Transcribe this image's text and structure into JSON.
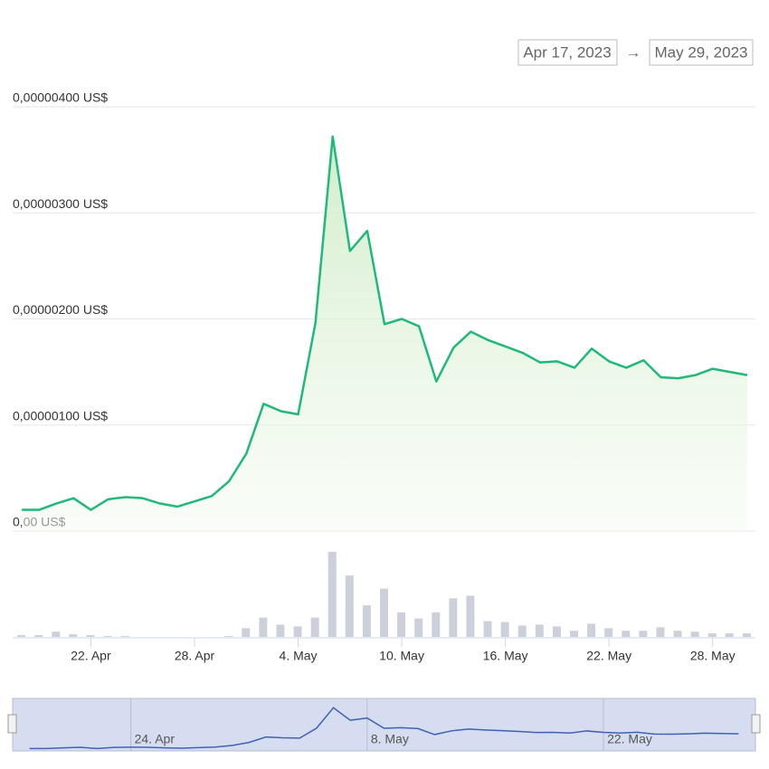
{
  "chart_data": {
    "type": "line",
    "date_range": {
      "start": "Apr 17, 2023",
      "arrow": "→",
      "end": "May 29, 2023"
    },
    "x": [
      "2023-04-18",
      "2023-04-19",
      "2023-04-20",
      "2023-04-21",
      "2023-04-22",
      "2023-04-23",
      "2023-04-24",
      "2023-04-25",
      "2023-04-26",
      "2023-04-27",
      "2023-04-28",
      "2023-04-29",
      "2023-04-30",
      "2023-05-01",
      "2023-05-02",
      "2023-05-03",
      "2023-05-04",
      "2023-05-05",
      "2023-05-06",
      "2023-05-07",
      "2023-05-08",
      "2023-05-09",
      "2023-05-10",
      "2023-05-11",
      "2023-05-12",
      "2023-05-13",
      "2023-05-14",
      "2023-05-15",
      "2023-05-16",
      "2023-05-17",
      "2023-05-18",
      "2023-05-19",
      "2023-05-20",
      "2023-05-21",
      "2023-05-22",
      "2023-05-23",
      "2023-05-24",
      "2023-05-25",
      "2023-05-26",
      "2023-05-27",
      "2023-05-28",
      "2023-05-29",
      "2023-05-30"
    ],
    "series": [
      {
        "color": "#1fb97a",
        "values": [
          2e-07,
          2e-07,
          2.6e-07,
          3.1e-07,
          2e-07,
          3e-07,
          3.2e-07,
          3.1e-07,
          2.6e-07,
          2.3e-07,
          2.8e-07,
          3.3e-07,
          4.7e-07,
          7.3e-07,
          1.2e-06,
          1.13e-06,
          1.1e-06,
          1.96e-06,
          3.72e-06,
          2.64e-06,
          2.83e-06,
          1.95e-06,
          2e-06,
          1.93e-06,
          1.41e-06,
          1.73e-06,
          1.88e-06,
          1.8e-06,
          1.74e-06,
          1.68e-06,
          1.59e-06,
          1.6e-06,
          1.54e-06,
          1.72e-06,
          1.6e-06,
          1.54e-06,
          1.61e-06,
          1.45e-06,
          1.44e-06,
          1.47e-06,
          1.53e-06,
          1.5e-06,
          1.47e-06
        ]
      },
      {
        "type": "bar",
        "axis": "y2",
        "color": "#cdd0db",
        "values": [
          2,
          2,
          6,
          3,
          2,
          1,
          1,
          0,
          0,
          0,
          0,
          0,
          1,
          10,
          22,
          14,
          12,
          22,
          97,
          70,
          36,
          55,
          28,
          21,
          28,
          44,
          47,
          18,
          17,
          13,
          14,
          12,
          7,
          15,
          10,
          7,
          7,
          11,
          7,
          6,
          4,
          4,
          4
        ]
      }
    ],
    "xlim": [
      "2023-04-17",
      "2023-05-31"
    ],
    "xticks": [
      {
        "value": "2023-04-22",
        "label": "22. Apr"
      },
      {
        "value": "2023-04-28",
        "label": "28. Apr"
      },
      {
        "value": "2023-05-04",
        "label": "4. May"
      },
      {
        "value": "2023-05-10",
        "label": "10. May"
      },
      {
        "value": "2023-05-16",
        "label": "16. May"
      },
      {
        "value": "2023-05-22",
        "label": "22. May"
      },
      {
        "value": "2023-05-28",
        "label": "28. May"
      }
    ],
    "ylim": [
      0,
      4e-06
    ],
    "yticks": [
      {
        "value": 0,
        "label": "0,00 US$"
      },
      {
        "value": 1e-06,
        "label": "0,00000100 US$"
      },
      {
        "value": 2e-06,
        "label": "0,00000200 US$"
      },
      {
        "value": 3e-06,
        "label": "0,00000300 US$"
      },
      {
        "value": 4e-06,
        "label": "0,00000400 US$"
      }
    ],
    "y2lim": [
      0,
      100
    ],
    "grid": true,
    "navigator": {
      "xticks": [
        {
          "value": "2023-04-24",
          "label": "24. Apr"
        },
        {
          "value": "2023-05-08",
          "label": "8. May"
        },
        {
          "value": "2023-05-22",
          "label": "22. May"
        }
      ]
    }
  }
}
